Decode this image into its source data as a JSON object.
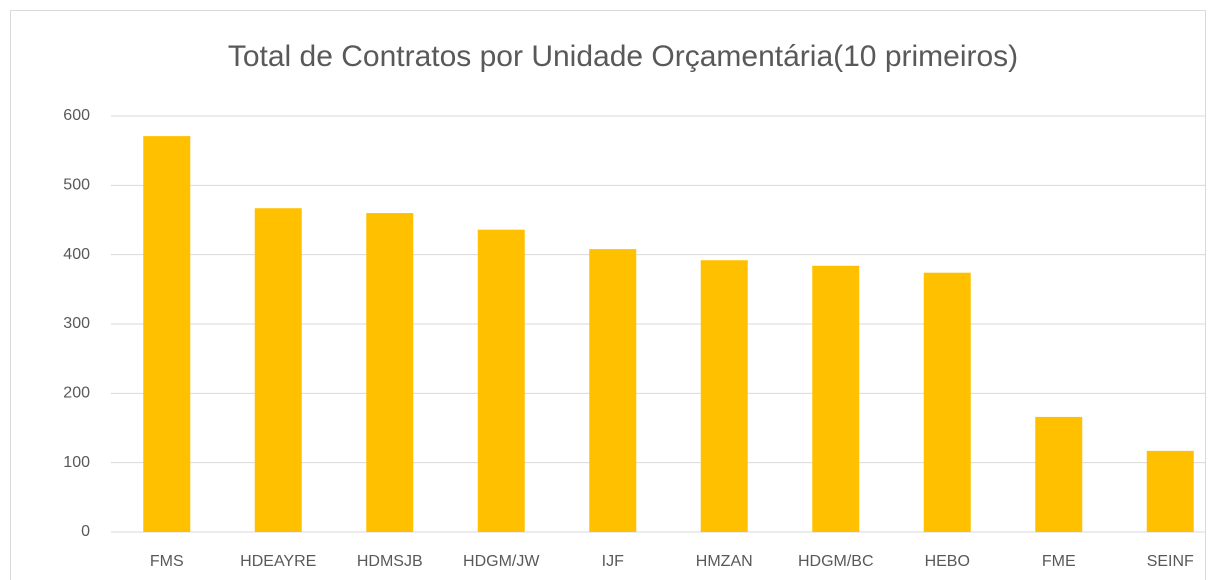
{
  "chart_data": {
    "type": "bar",
    "title": "Total de Contratos por Unidade Orçamentária(10 primeiros)",
    "categories": [
      "FMS",
      "HDEAYRE",
      "HDMSJB",
      "HDGM/JW",
      "IJF",
      "HMZAN",
      "HDGM/BC",
      "HEBO",
      "FME",
      "SEINF"
    ],
    "values": [
      571,
      467,
      460,
      436,
      408,
      392,
      384,
      374,
      166,
      117
    ],
    "color": "#ffc000",
    "ylim": [
      0,
      600
    ],
    "yticks": [
      0,
      100,
      200,
      300,
      400,
      500,
      600
    ],
    "grid": true
  }
}
